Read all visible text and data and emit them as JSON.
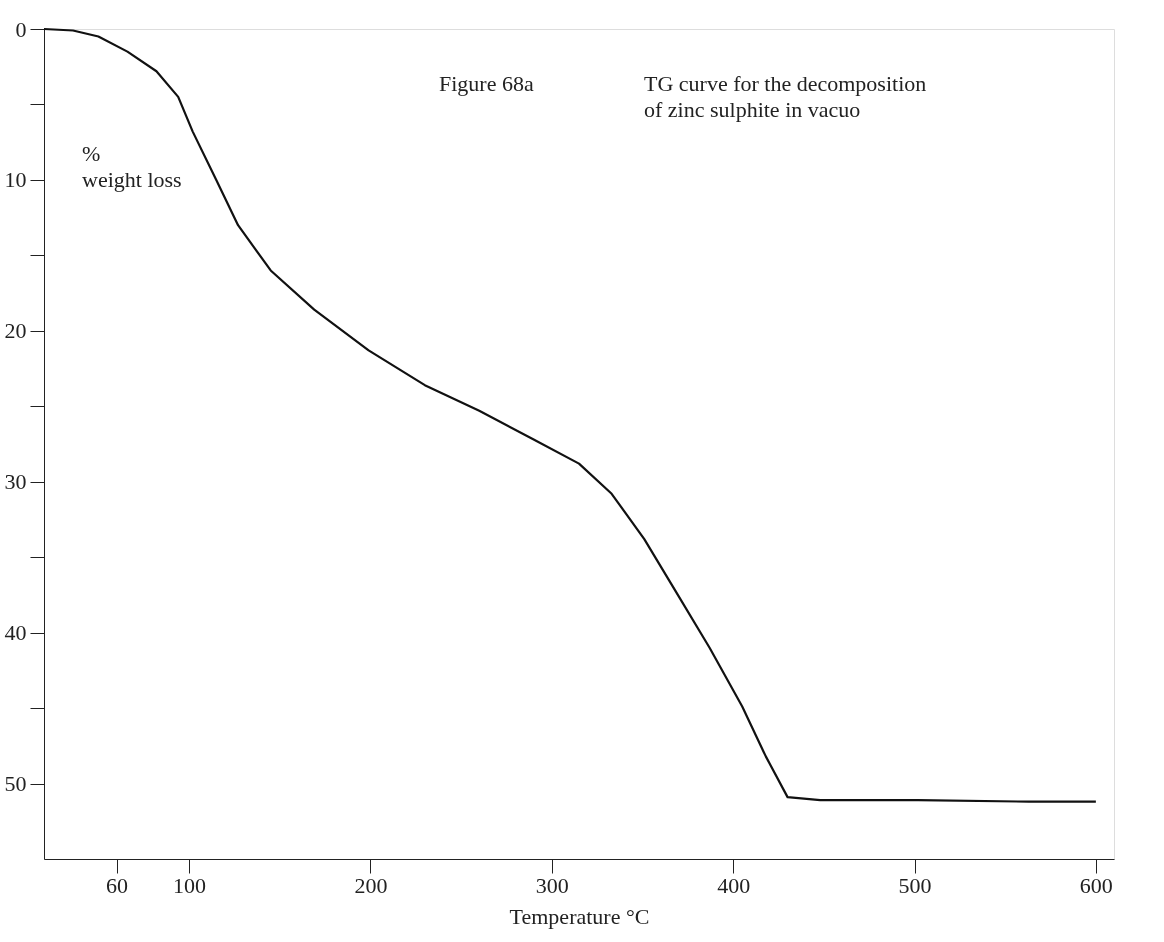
{
  "chart_data": {
    "type": "line",
    "xlabel": "Temperature °C",
    "ylabel": "% weight loss",
    "annotations": [
      "Figure 68a",
      "TG curve for the decomposition of zinc sulphite in vacuo"
    ],
    "x": [
      20,
      36,
      50,
      66,
      82,
      94,
      102,
      115,
      127,
      145,
      169,
      199,
      230,
      260,
      290,
      315,
      333,
      351,
      369,
      387,
      405,
      418,
      430,
      448,
      502,
      563,
      600
    ],
    "series": [
      {
        "color": "#111111",
        "values": [
          0,
          0.1,
          0.5,
          1.5,
          2.8,
          4.5,
          6.8,
          10,
          13,
          16,
          18.6,
          21.3,
          23.6,
          25.3,
          27.2,
          28.8,
          30.8,
          33.8,
          37.4,
          41,
          44.9,
          48.2,
          50.9,
          51.1,
          51.1,
          51.2,
          51.2
        ]
      }
    ],
    "xlim": [
      20,
      610
    ],
    "ylim": [
      55,
      0
    ],
    "xticks": [
      60,
      100,
      200,
      300,
      400,
      500,
      600
    ],
    "yticks": [
      0,
      {
        "value": 5,
        "label": null
      },
      10,
      {
        "value": 15,
        "label": null
      },
      20,
      {
        "value": 25,
        "label": null
      },
      30,
      {
        "value": 35,
        "label": null
      },
      40,
      {
        "value": 45,
        "label": null
      },
      50
    ],
    "marker": "none",
    "line_style": "solid",
    "grid": false
  }
}
